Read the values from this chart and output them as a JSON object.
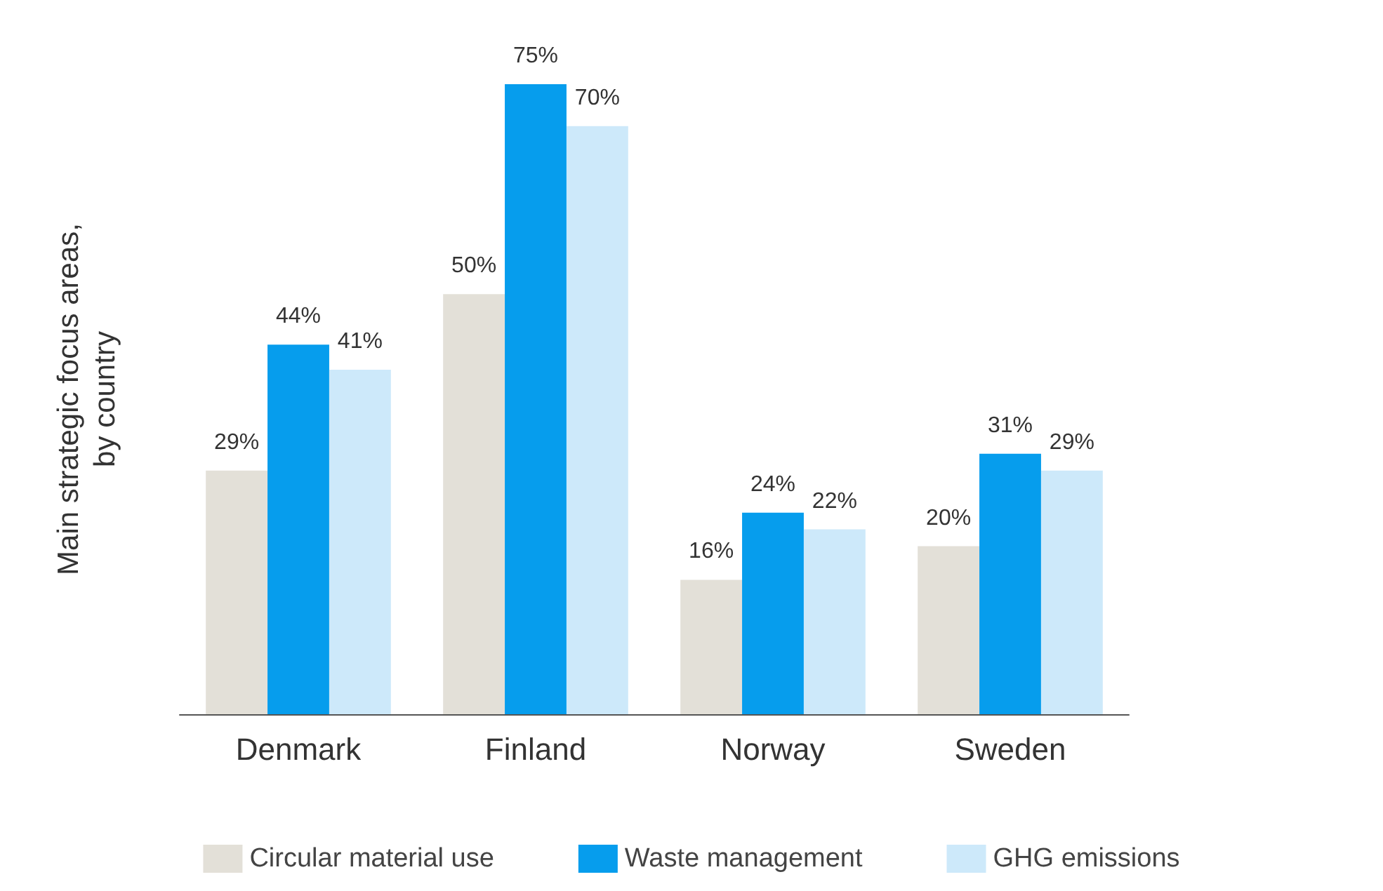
{
  "chart_data": {
    "type": "bar",
    "ylabel": "Main strategic focus areas,\nby country",
    "relative": false,
    "categories": [
      "Denmark",
      "Finland",
      "Norway",
      "Sweden"
    ],
    "series": [
      {
        "name": "Circular material use",
        "color": "#e3e0d8",
        "values": [
          29,
          50,
          16,
          20
        ],
        "value_labels": [
          "29%",
          "50%",
          "16%",
          "20%"
        ]
      },
      {
        "name": "Waste management",
        "color": "#069ded",
        "values": [
          44,
          75,
          24,
          31
        ],
        "value_labels": [
          "44%",
          "75%",
          "24%",
          "31%"
        ]
      },
      {
        "name": "GHG emissions",
        "color": "#cde9fa",
        "values": [
          41,
          70,
          22,
          29
        ],
        "value_labels": [
          "41%",
          "70%",
          "22%",
          "29%"
        ]
      }
    ],
    "grid": false,
    "legend": "bottom"
  }
}
